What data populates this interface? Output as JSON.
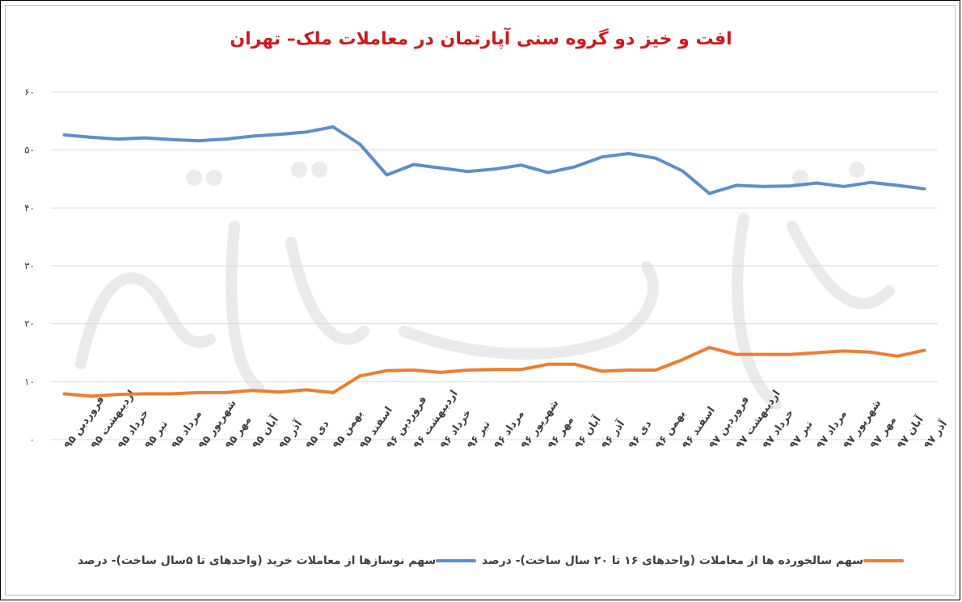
{
  "chart_data": {
    "type": "line",
    "title": "افت و خیز دو گروه سنی آپارتمان در معاملات ملک– تهران",
    "ylim": [
      0,
      60
    ],
    "yticks": [
      "۰",
      "۱۰",
      "۲۰",
      "۳۰",
      "۴۰",
      "۵۰",
      "۶۰"
    ],
    "categories": [
      "فروردین ۹۵",
      "اردیبهشت ۹۵",
      "خرداد ۹۵",
      "تیر ۹۵",
      "مرداد ۹۵",
      "شهریور ۹۵",
      "مهر ۹۵",
      "آبان ۹۵",
      "آذر ۹۵",
      "دی ۹۵",
      "بهمن ۹۵",
      "اسفند ۹۵",
      "فروردین ۹۶",
      "اردیبهشت ۹۶",
      "خرداد ۹۶",
      "تیر ۹۶",
      "مرداد ۹۶",
      "شهریور ۹۶",
      "مهر ۹۶",
      "آبان ۹۶",
      "آذر ۹۶",
      "دی ۹۶",
      "بهمن ۹۶",
      "اسفند ۹۶",
      "فروردین ۹۷",
      "اردیبهشت ۹۷",
      "خرداد ۹۷",
      "تیر ۹۷",
      "مرداد ۹۷",
      "شهریور ۹۷",
      "مهر ۹۷",
      "آبان ۹۷",
      "آذر ۹۷"
    ],
    "series": [
      {
        "name": "سهم نوسازها از معاملات خرید (واحدهای تا ۵سال ساخت)- درصد",
        "color": "#5b8fc9",
        "values": [
          52.6,
          52.2,
          51.9,
          52.1,
          51.8,
          51.6,
          51.9,
          52.4,
          52.7,
          53.1,
          54.0,
          51.0,
          45.7,
          47.5,
          46.9,
          46.3,
          46.7,
          47.4,
          46.1,
          47.1,
          48.8,
          49.4,
          48.6,
          46.4,
          42.5,
          43.9,
          43.7,
          43.8,
          44.3,
          43.7,
          44.4,
          43.9,
          43.3
        ]
      },
      {
        "name": "سهم سالخورده ها از معاملات (واحدهای ۱۶ تا ۲۰ سال ساخت)- درصد",
        "color": "#ed7d31",
        "values": [
          7.9,
          7.5,
          7.8,
          7.9,
          7.9,
          8.1,
          8.1,
          8.5,
          8.2,
          8.6,
          8.1,
          11.0,
          11.9,
          12.0,
          11.6,
          12.0,
          12.1,
          12.1,
          13.0,
          13.0,
          11.8,
          12.0,
          12.0,
          13.8,
          15.9,
          14.7,
          14.7,
          14.7,
          15.0,
          15.3,
          15.1,
          14.4,
          15.4
        ]
      }
    ],
    "grid": true,
    "legend_position": "bottom"
  }
}
